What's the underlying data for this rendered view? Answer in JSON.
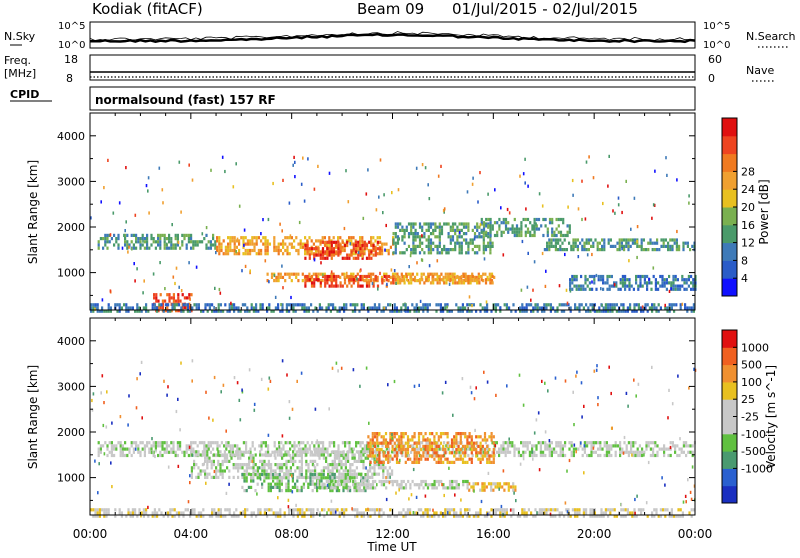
{
  "header": {
    "station": "Kodiak (fitACF)",
    "beam": "Beam 09",
    "dates": "01/Jul/2015 - 02/Jul/2015"
  },
  "panels": {
    "nsky_label": "N.Sky",
    "nsky_ticks": [
      "10^5",
      "10^0"
    ],
    "nsearch_label": "N.Search",
    "nsearch_ticks": [
      "10^5",
      "10^0"
    ],
    "freq_label": "Freq.",
    "freq_unit": "[MHz]",
    "freq_ticks": [
      "18",
      "8"
    ],
    "nave_label": "Nave",
    "nave_ticks": [
      "60",
      "0"
    ],
    "cpid_label": "CPID",
    "cpid_text": "normalsound (fast) 157 RF"
  },
  "chart_data": [
    {
      "type": "heatmap",
      "quantity": "Power",
      "ylabel": "Slant Range [km]",
      "xlabel": "Time UT",
      "xlim": [
        "00:00",
        "24:00"
      ],
      "ylim": [
        180,
        4500
      ],
      "x_ticks": [
        "00:00",
        "04:00",
        "08:00",
        "12:00",
        "16:00",
        "20:00",
        "00:00"
      ],
      "y_ticks": [
        "1000",
        "2000",
        "3000",
        "4000"
      ],
      "y_tick_values": [
        1000,
        2000,
        3000,
        4000
      ],
      "colorbar": {
        "label": "Power [dB]",
        "ticks": [
          "4",
          "8",
          "12",
          "16",
          "20",
          "24",
          "28"
        ],
        "colors": [
          "#1010ff",
          "#2a5cc8",
          "#3e7ab8",
          "#4a9a6a",
          "#7ab050",
          "#e8c020",
          "#f0a030",
          "#f07a20",
          "#ee4420",
          "#e01010"
        ]
      },
      "regions": [
        {
          "t0": 0.3,
          "t1": 5.0,
          "r0": 1550,
          "r1": 1850,
          "level": 3
        },
        {
          "t0": 5.0,
          "t1": 12.0,
          "r0": 1400,
          "r1": 1800,
          "level": 6
        },
        {
          "t0": 8.5,
          "t1": 11.5,
          "r0": 1300,
          "r1": 1700,
          "level": 8
        },
        {
          "t0": 12.0,
          "t1": 16.0,
          "r0": 1400,
          "r1": 2100,
          "level": 3
        },
        {
          "t0": 15.5,
          "t1": 19.0,
          "r0": 1800,
          "r1": 2200,
          "level": 3
        },
        {
          "t0": 18.0,
          "t1": 24.0,
          "r0": 1500,
          "r1": 1750,
          "level": 3
        },
        {
          "t0": 7.0,
          "t1": 16.0,
          "r0": 800,
          "r1": 1000,
          "level": 6
        },
        {
          "t0": 8.5,
          "t1": 12.0,
          "r0": 700,
          "r1": 950,
          "level": 8
        },
        {
          "t0": 12.0,
          "t1": 16.0,
          "r0": 750,
          "r1": 950,
          "level": 6
        },
        {
          "t0": 2.5,
          "t1": 4.0,
          "r0": 180,
          "r1": 550,
          "level": 8
        },
        {
          "t0": 0.0,
          "t1": 24.0,
          "r0": 180,
          "r1": 330,
          "level": 2
        },
        {
          "t0": 19.0,
          "t1": 24.0,
          "r0": 600,
          "r1": 950,
          "level": 2
        }
      ]
    },
    {
      "type": "heatmap",
      "quantity": "Velocity",
      "ylabel": "Slant Range [km]",
      "xlabel": "Time UT",
      "xlim": [
        "00:00",
        "24:00"
      ],
      "ylim": [
        180,
        4500
      ],
      "x_ticks": [
        "00:00",
        "04:00",
        "08:00",
        "12:00",
        "16:00",
        "20:00",
        "00:00"
      ],
      "y_ticks": [
        "1000",
        "2000",
        "3000",
        "4000"
      ],
      "y_tick_values": [
        1000,
        2000,
        3000,
        4000
      ],
      "colorbar": {
        "label": "Velocity [m s^-1]",
        "ticks": [
          "1000",
          "500",
          "100",
          "25",
          "-25",
          "-100",
          "-500",
          "-1000"
        ],
        "colors": [
          "#1a2fc0",
          "#2a60d0",
          "#4a9a70",
          "#60c040",
          "#c8c8c8",
          "#c8c8c8",
          "#e8c020",
          "#f09030",
          "#f06020",
          "#e01010"
        ]
      },
      "regions": [
        {
          "t0": 0.3,
          "t1": 24.0,
          "r0": 1500,
          "r1": 1800,
          "level": 4
        },
        {
          "t0": 4.0,
          "t1": 12.0,
          "r0": 1000,
          "r1": 1600,
          "level": 4
        },
        {
          "t0": 6.0,
          "t1": 11.0,
          "r0": 700,
          "r1": 1100,
          "level": 3
        },
        {
          "t0": 11.0,
          "t1": 16.0,
          "r0": 1300,
          "r1": 2000,
          "level": 7
        },
        {
          "t0": 15.0,
          "t1": 17.0,
          "r0": 700,
          "r1": 900,
          "level": 6
        },
        {
          "t0": 9.0,
          "t1": 15.0,
          "r0": 800,
          "r1": 950,
          "level": 4
        },
        {
          "t0": 0.0,
          "t1": 24.0,
          "r0": 180,
          "r1": 330,
          "level": 5
        }
      ]
    }
  ]
}
